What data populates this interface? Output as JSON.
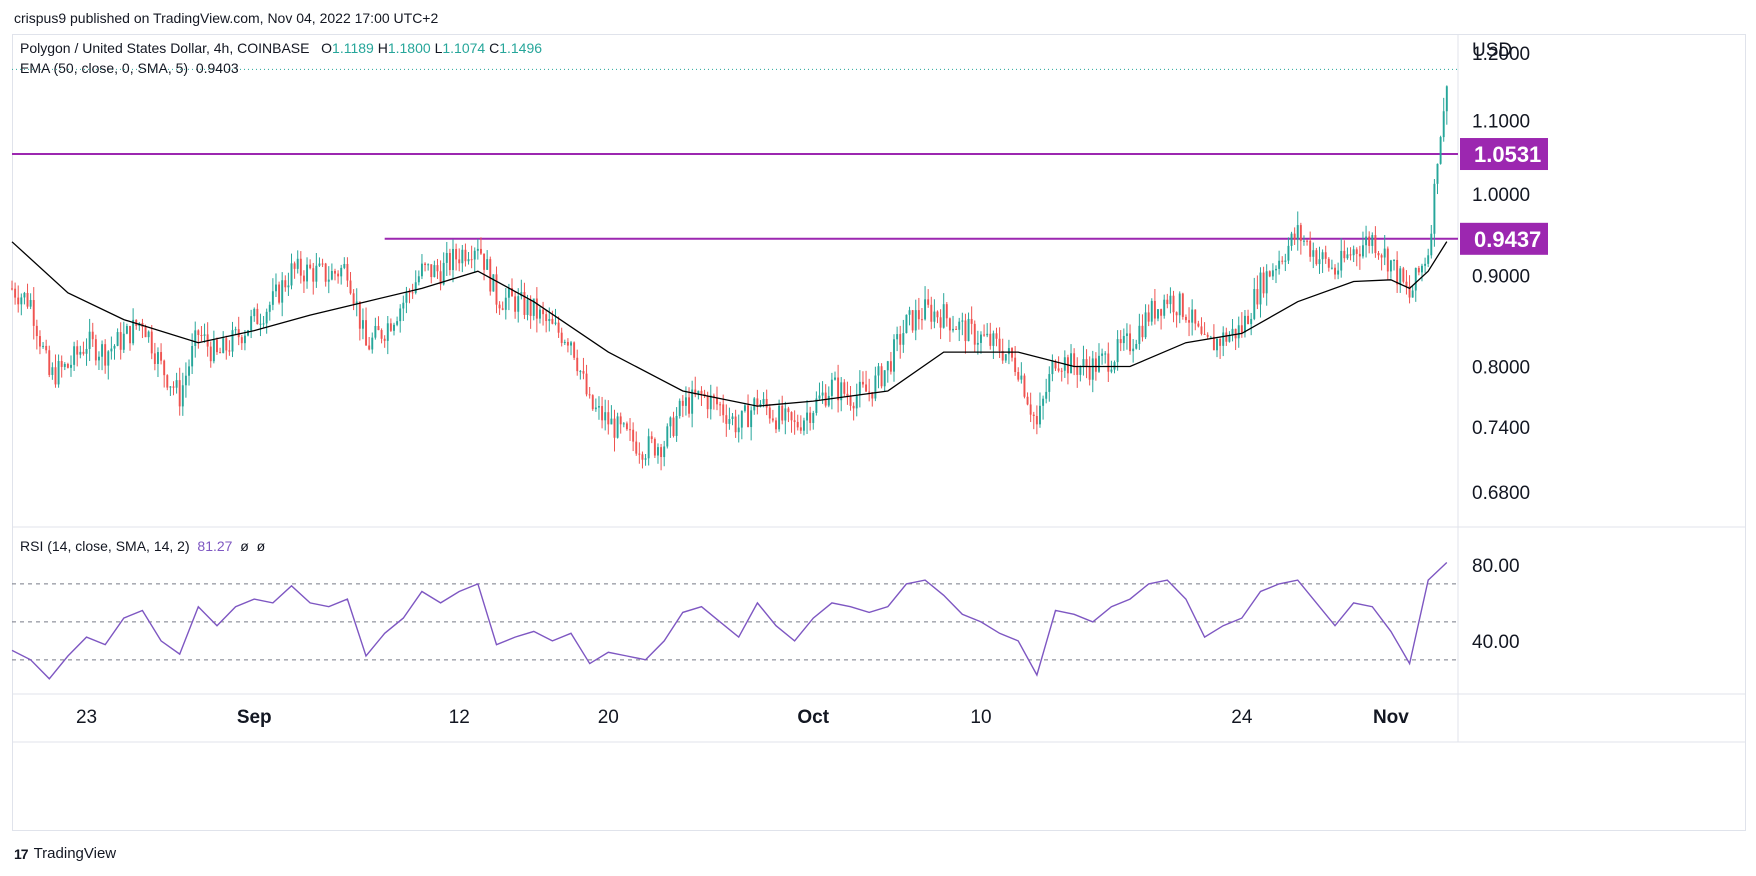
{
  "header": {
    "publisher": "crispus9 published on TradingView.com, Nov 04, 2022 17:00 UTC+2"
  },
  "legend": {
    "symbol": "Polygon / United States Dollar, 4h, COINBASE",
    "open_label": "O",
    "open": "1.1189",
    "high_label": "H",
    "high": "1.1800",
    "low_label": "L",
    "low": "1.1074",
    "close_label": "C",
    "close": "1.1496",
    "ema_label": "EMA (50, close, 0, SMA, 5)",
    "ema_value": "0.9403",
    "rsi_label": "RSI (14, close, SMA, 14, 2)",
    "rsi_value": "81.27",
    "rsi_extra1": "ø",
    "rsi_extra2": "ø"
  },
  "footer": {
    "brand": "TradingView",
    "brand_mark": "17"
  },
  "colors": {
    "up": "#26a69a",
    "down": "#ef5350",
    "ema": "#000000",
    "level": "#9c27b0",
    "rsi": "#7e57c2"
  },
  "chart_data": [
    {
      "type": "candlestick",
      "title": "Polygon / United States Dollar, 4h, COINBASE",
      "ylabel": "USD",
      "scale": "log",
      "ylim": [
        0.65,
        1.23
      ],
      "y_ticks": [
        "1.2000",
        "1.1000",
        "1.0000",
        "0.9000",
        "0.8000",
        "0.7400",
        "0.6800"
      ],
      "y_tick_values": [
        1.2,
        1.1,
        1.0,
        0.9,
        0.8,
        0.74,
        0.68
      ],
      "x_ticks": [
        "23",
        "Sep",
        "12",
        "20",
        "Oct",
        "10",
        "24",
        "Nov"
      ],
      "x_tick_dates": [
        "2022-08-23",
        "2022-09-01",
        "2022-09-12",
        "2022-09-20",
        "2022-10-01",
        "2022-10-10",
        "2022-10-24",
        "2022-11-01"
      ],
      "date_range": [
        "2022-08-19",
        "2022-11-04"
      ],
      "horizontal_levels": [
        {
          "label": "1.0531",
          "value": 1.0531
        },
        {
          "label": "0.9437",
          "value": 0.9437,
          "from_date": "2022-09-08"
        }
      ],
      "last_price": 1.1496,
      "close_path": [
        [
          "2022-08-19",
          0.885
        ],
        [
          "2022-08-20",
          0.87
        ],
        [
          "2022-08-21",
          0.79
        ],
        [
          "2022-08-22",
          0.8
        ],
        [
          "2022-08-23",
          0.825
        ],
        [
          "2022-08-24",
          0.815
        ],
        [
          "2022-08-25",
          0.83
        ],
        [
          "2022-08-26",
          0.85
        ],
        [
          "2022-08-27",
          0.8
        ],
        [
          "2022-08-28",
          0.77
        ],
        [
          "2022-08-29",
          0.835
        ],
        [
          "2022-08-30",
          0.81
        ],
        [
          "2022-08-31",
          0.83
        ],
        [
          "2022-09-01",
          0.85
        ],
        [
          "2022-09-02",
          0.87
        ],
        [
          "2022-09-03",
          0.905
        ],
        [
          "2022-09-04",
          0.905
        ],
        [
          "2022-09-05",
          0.9
        ],
        [
          "2022-09-06",
          0.91
        ],
        [
          "2022-09-07",
          0.82
        ],
        [
          "2022-09-08",
          0.84
        ],
        [
          "2022-09-09",
          0.87
        ],
        [
          "2022-09-10",
          0.905
        ],
        [
          "2022-09-11",
          0.905
        ],
        [
          "2022-09-12",
          0.925
        ],
        [
          "2022-09-13",
          0.94
        ],
        [
          "2022-09-14",
          0.875
        ],
        [
          "2022-09-15",
          0.87
        ],
        [
          "2022-09-16",
          0.86
        ],
        [
          "2022-09-17",
          0.84
        ],
        [
          "2022-09-18",
          0.83
        ],
        [
          "2022-09-19",
          0.76
        ],
        [
          "2022-09-20",
          0.745
        ],
        [
          "2022-09-21",
          0.73
        ],
        [
          "2022-09-22",
          0.72
        ],
        [
          "2022-09-23",
          0.725
        ],
        [
          "2022-09-24",
          0.76
        ],
        [
          "2022-09-25",
          0.77
        ],
        [
          "2022-09-26",
          0.76
        ],
        [
          "2022-09-27",
          0.74
        ],
        [
          "2022-09-28",
          0.765
        ],
        [
          "2022-09-29",
          0.75
        ],
        [
          "2022-09-30",
          0.74
        ],
        [
          "2022-10-01",
          0.76
        ],
        [
          "2022-10-02",
          0.78
        ],
        [
          "2022-10-03",
          0.77
        ],
        [
          "2022-10-04",
          0.775
        ],
        [
          "2022-10-05",
          0.8
        ],
        [
          "2022-10-06",
          0.845
        ],
        [
          "2022-10-07",
          0.86
        ],
        [
          "2022-10-08",
          0.855
        ],
        [
          "2022-10-09",
          0.84
        ],
        [
          "2022-10-10",
          0.83
        ],
        [
          "2022-10-11",
          0.82
        ],
        [
          "2022-10-12",
          0.8
        ],
        [
          "2022-10-13",
          0.74
        ],
        [
          "2022-10-14",
          0.81
        ],
        [
          "2022-10-15",
          0.8
        ],
        [
          "2022-10-16",
          0.8
        ],
        [
          "2022-10-17",
          0.81
        ],
        [
          "2022-10-18",
          0.825
        ],
        [
          "2022-10-19",
          0.855
        ],
        [
          "2022-10-20",
          0.875
        ],
        [
          "2022-10-21",
          0.86
        ],
        [
          "2022-10-22",
          0.82
        ],
        [
          "2022-10-23",
          0.83
        ],
        [
          "2022-10-24",
          0.84
        ],
        [
          "2022-10-25",
          0.89
        ],
        [
          "2022-10-26",
          0.92
        ],
        [
          "2022-10-27",
          0.95
        ],
        [
          "2022-10-28",
          0.925
        ],
        [
          "2022-10-29",
          0.905
        ],
        [
          "2022-10-30",
          0.93
        ],
        [
          "2022-10-31",
          0.945
        ],
        [
          "2022-11-01",
          0.915
        ],
        [
          "2022-11-02",
          0.875
        ],
        [
          "2022-11-03",
          0.93
        ],
        [
          "2022-11-04",
          1.1496
        ]
      ],
      "ema_path": [
        [
          "2022-08-19",
          0.94
        ],
        [
          "2022-08-22",
          0.88
        ],
        [
          "2022-08-25",
          0.85
        ],
        [
          "2022-08-29",
          0.825
        ],
        [
          "2022-09-01",
          0.838
        ],
        [
          "2022-09-04",
          0.855
        ],
        [
          "2022-09-07",
          0.87
        ],
        [
          "2022-09-10",
          0.885
        ],
        [
          "2022-09-13",
          0.905
        ],
        [
          "2022-09-16",
          0.87
        ],
        [
          "2022-09-20",
          0.815
        ],
        [
          "2022-09-24",
          0.775
        ],
        [
          "2022-09-28",
          0.76
        ],
        [
          "2022-10-01",
          0.765
        ],
        [
          "2022-10-05",
          0.775
        ],
        [
          "2022-10-08",
          0.815
        ],
        [
          "2022-10-12",
          0.815
        ],
        [
          "2022-10-15",
          0.8
        ],
        [
          "2022-10-18",
          0.8
        ],
        [
          "2022-10-21",
          0.825
        ],
        [
          "2022-10-24",
          0.835
        ],
        [
          "2022-10-27",
          0.87
        ],
        [
          "2022-10-30",
          0.893
        ],
        [
          "2022-11-01",
          0.895
        ],
        [
          "2022-11-02",
          0.885
        ],
        [
          "2022-11-03",
          0.905
        ],
        [
          "2022-11-04",
          0.9403
        ]
      ]
    },
    {
      "type": "line",
      "title": "RSI (14, close, SMA, 14, 2)",
      "ylim": [
        12,
        100
      ],
      "y_ticks": [
        "80.00",
        "40.00"
      ],
      "y_tick_values": [
        80,
        40
      ],
      "bands": [
        70,
        50,
        30
      ],
      "last_value": 81.27,
      "series": [
        {
          "name": "RSI",
          "points": [
            [
              "2022-08-19",
              35
            ],
            [
              "2022-08-20",
              30
            ],
            [
              "2022-08-21",
              20
            ],
            [
              "2022-08-22",
              32
            ],
            [
              "2022-08-23",
              42
            ],
            [
              "2022-08-24",
              38
            ],
            [
              "2022-08-25",
              52
            ],
            [
              "2022-08-26",
              56
            ],
            [
              "2022-08-27",
              40
            ],
            [
              "2022-08-28",
              33
            ],
            [
              "2022-08-29",
              58
            ],
            [
              "2022-08-30",
              48
            ],
            [
              "2022-08-31",
              58
            ],
            [
              "2022-09-01",
              62
            ],
            [
              "2022-09-02",
              60
            ],
            [
              "2022-09-03",
              69
            ],
            [
              "2022-09-04",
              60
            ],
            [
              "2022-09-05",
              58
            ],
            [
              "2022-09-06",
              62
            ],
            [
              "2022-09-07",
              32
            ],
            [
              "2022-09-08",
              44
            ],
            [
              "2022-09-09",
              52
            ],
            [
              "2022-09-10",
              66
            ],
            [
              "2022-09-11",
              60
            ],
            [
              "2022-09-12",
              66
            ],
            [
              "2022-09-13",
              70
            ],
            [
              "2022-09-14",
              38
            ],
            [
              "2022-09-15",
              42
            ],
            [
              "2022-09-16",
              45
            ],
            [
              "2022-09-17",
              40
            ],
            [
              "2022-09-18",
              44
            ],
            [
              "2022-09-19",
              28
            ],
            [
              "2022-09-20",
              34
            ],
            [
              "2022-09-21",
              32
            ],
            [
              "2022-09-22",
              30
            ],
            [
              "2022-09-23",
              40
            ],
            [
              "2022-09-24",
              55
            ],
            [
              "2022-09-25",
              58
            ],
            [
              "2022-09-26",
              50
            ],
            [
              "2022-09-27",
              42
            ],
            [
              "2022-09-28",
              60
            ],
            [
              "2022-09-29",
              48
            ],
            [
              "2022-09-30",
              40
            ],
            [
              "2022-10-01",
              52
            ],
            [
              "2022-10-02",
              60
            ],
            [
              "2022-10-03",
              58
            ],
            [
              "2022-10-04",
              55
            ],
            [
              "2022-10-05",
              58
            ],
            [
              "2022-10-06",
              70
            ],
            [
              "2022-10-07",
              72
            ],
            [
              "2022-10-08",
              64
            ],
            [
              "2022-10-09",
              54
            ],
            [
              "2022-10-10",
              50
            ],
            [
              "2022-10-11",
              44
            ],
            [
              "2022-10-12",
              40
            ],
            [
              "2022-10-13",
              22
            ],
            [
              "2022-10-14",
              56
            ],
            [
              "2022-10-15",
              54
            ],
            [
              "2022-10-16",
              50
            ],
            [
              "2022-10-17",
              58
            ],
            [
              "2022-10-18",
              62
            ],
            [
              "2022-10-19",
              70
            ],
            [
              "2022-10-20",
              72
            ],
            [
              "2022-10-21",
              62
            ],
            [
              "2022-10-22",
              42
            ],
            [
              "2022-10-23",
              48
            ],
            [
              "2022-10-24",
              52
            ],
            [
              "2022-10-25",
              66
            ],
            [
              "2022-10-26",
              70
            ],
            [
              "2022-10-27",
              72
            ],
            [
              "2022-10-28",
              60
            ],
            [
              "2022-10-29",
              48
            ],
            [
              "2022-10-30",
              60
            ],
            [
              "2022-10-31",
              58
            ],
            [
              "2022-11-01",
              45
            ],
            [
              "2022-11-02",
              28
            ],
            [
              "2022-11-03",
              72
            ],
            [
              "2022-11-04",
              81.27
            ]
          ]
        }
      ]
    }
  ],
  "axis": {
    "currency": "USD"
  }
}
